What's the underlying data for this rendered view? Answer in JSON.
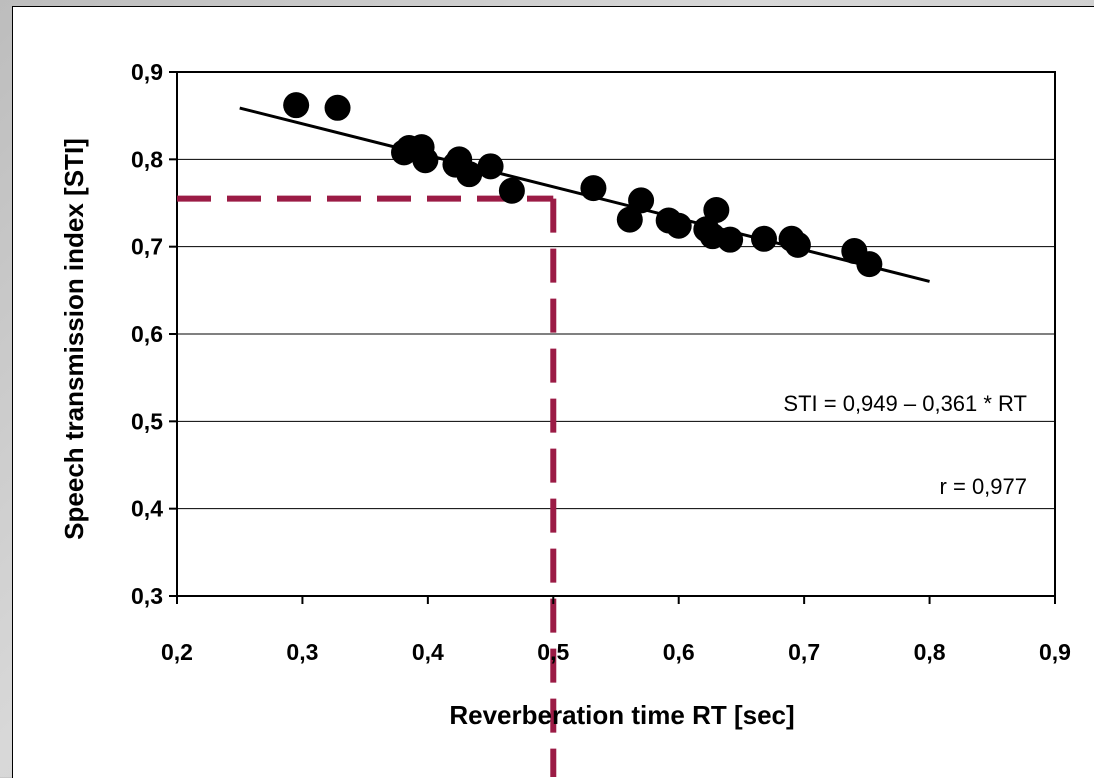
{
  "chart_data": {
    "type": "scatter",
    "xlabel": "Reverberation time RT [sec]",
    "ylabel": "Speech transmission index [STI]",
    "xlim": [
      0.2,
      0.9
    ],
    "ylim": [
      0.3,
      0.9
    ],
    "x_ticks": [
      "0,2",
      "0,3",
      "0,4",
      "0,5",
      "0,6",
      "0,7",
      "0,8",
      "0,9"
    ],
    "y_ticks": [
      "0,3",
      "0,4",
      "0,5",
      "0,6",
      "0,7",
      "0,8",
      "0,9"
    ],
    "x_tick_values": [
      0.2,
      0.3,
      0.4,
      0.5,
      0.6,
      0.7,
      0.8,
      0.9
    ],
    "y_tick_values": [
      0.3,
      0.4,
      0.5,
      0.6,
      0.7,
      0.8,
      0.9
    ],
    "grid": "horizontal",
    "points": [
      {
        "x": 0.295,
        "y": 0.862
      },
      {
        "x": 0.328,
        "y": 0.859
      },
      {
        "x": 0.381,
        "y": 0.808
      },
      {
        "x": 0.385,
        "y": 0.813
      },
      {
        "x": 0.395,
        "y": 0.814
      },
      {
        "x": 0.398,
        "y": 0.799
      },
      {
        "x": 0.422,
        "y": 0.794
      },
      {
        "x": 0.425,
        "y": 0.8
      },
      {
        "x": 0.433,
        "y": 0.783
      },
      {
        "x": 0.45,
        "y": 0.792
      },
      {
        "x": 0.467,
        "y": 0.764
      },
      {
        "x": 0.532,
        "y": 0.767
      },
      {
        "x": 0.561,
        "y": 0.731
      },
      {
        "x": 0.57,
        "y": 0.753
      },
      {
        "x": 0.592,
        "y": 0.73
      },
      {
        "x": 0.6,
        "y": 0.724
      },
      {
        "x": 0.622,
        "y": 0.72
      },
      {
        "x": 0.627,
        "y": 0.712
      },
      {
        "x": 0.63,
        "y": 0.742
      },
      {
        "x": 0.641,
        "y": 0.708
      },
      {
        "x": 0.668,
        "y": 0.709
      },
      {
        "x": 0.69,
        "y": 0.709
      },
      {
        "x": 0.695,
        "y": 0.702
      },
      {
        "x": 0.74,
        "y": 0.695
      },
      {
        "x": 0.752,
        "y": 0.68
      }
    ],
    "regression": {
      "x_start": 0.25,
      "x_end": 0.8,
      "intercept": 0.949,
      "slope": -0.361
    },
    "reference": {
      "x": 0.5,
      "y": 0.755
    },
    "annotations": [
      "STI = 0,949 – 0,361 * RT",
      "r = 0,977"
    ],
    "colors": {
      "points": "#000000",
      "line": "#000000",
      "reference": "#9b1b45",
      "grid": "#000000"
    }
  }
}
